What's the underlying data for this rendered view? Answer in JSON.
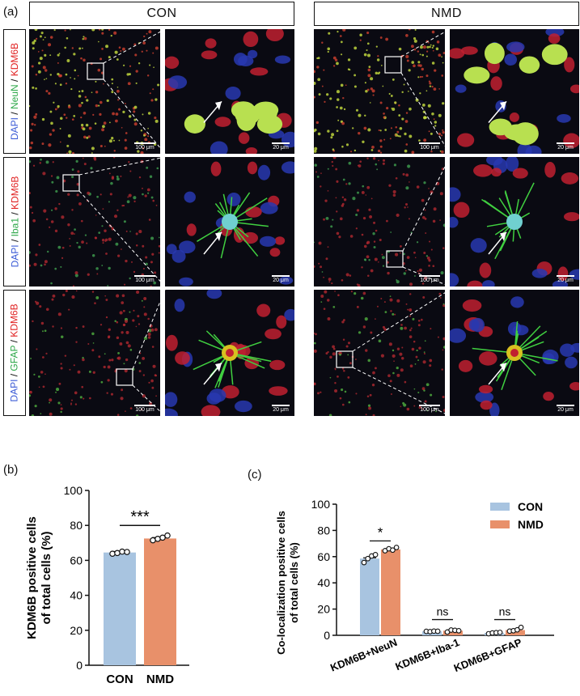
{
  "figure": {
    "panel_a": "(a)",
    "panel_b": "(b)",
    "panel_c": "(c)",
    "groups": [
      "CON",
      "NMD"
    ],
    "rows": [
      {
        "blue": "DAPI",
        "marker": "NeuN",
        "red": "KDM6B"
      },
      {
        "blue": "DAPI",
        "marker": "Iba1",
        "red": "KDM6B"
      },
      {
        "blue": "DAPI",
        "marker": "GFAP",
        "red": "KDM6B"
      }
    ],
    "slash": " / ",
    "scale_low": "100 μm",
    "scale_high": "20 μm",
    "colors": {
      "con": "#a8c4e0",
      "nmd": "#e8906a",
      "dapi": "#3b5bd6",
      "green": "#2ea84a",
      "red": "#e02020"
    }
  },
  "chart_data": [
    {
      "type": "bar",
      "panel": "b",
      "categories": [
        "CON",
        "NMD"
      ],
      "values": [
        64.5,
        72.5
      ],
      "points": [
        [
          63.8,
          64.2,
          65.0,
          64.8
        ],
        [
          71.5,
          72.3,
          73.0,
          74.2
        ]
      ],
      "ylabel": "KDM6B positive cells of total cells (%)",
      "ylabel_lines": [
        "KDM6B positive cells",
        "of total cells (%)"
      ],
      "ylim": [
        0,
        100
      ],
      "yticks": [
        0,
        20,
        40,
        60,
        80,
        100
      ],
      "significance": "***"
    },
    {
      "type": "bar",
      "panel": "c",
      "categories": [
        "KDM6B+NeuN",
        "KDM6B+Iba-1",
        "KDM6B+GFAP"
      ],
      "series": [
        {
          "name": "CON",
          "values": [
            58.5,
            3.0,
            1.8
          ],
          "points": [
            [
              55.5,
              58.5,
              60.5,
              61.5
            ],
            [
              3.0,
              2.8,
              3.2,
              3.1
            ],
            [
              1.2,
              1.8,
              2.0,
              2.2
            ]
          ]
        },
        {
          "name": "NMD",
          "values": [
            65.5,
            3.5,
            4.0
          ],
          "points": [
            [
              64.5,
              66.0,
              65.0,
              67.0
            ],
            [
              2.5,
              4.0,
              3.8,
              3.5
            ],
            [
              3.2,
              3.5,
              4.2,
              6.0
            ]
          ]
        }
      ],
      "ylabel": "Co-localization positive cells of total cells (%)",
      "ylabel_lines": [
        "Co-localization positive cells",
        "of total cells (%)"
      ],
      "ylim": [
        0,
        100
      ],
      "yticks": [
        0,
        20,
        40,
        60,
        80,
        100
      ],
      "significance": [
        "*",
        "ns",
        "ns"
      ],
      "legend_position": "top-right"
    }
  ]
}
